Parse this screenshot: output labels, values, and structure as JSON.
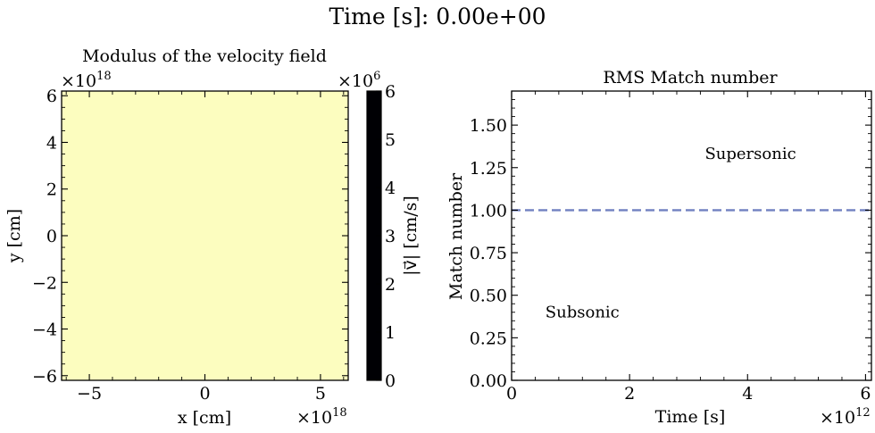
{
  "suptitle": "Time [s]: 0.00e+00",
  "chart_data": [
    {
      "type": "heatmap",
      "title": "Modulus of the velocity field",
      "xlabel": "x [cm]",
      "ylabel": "y [cm]",
      "x_scale_label": "×10",
      "x_scale_exp": "18",
      "y_scale_label": "×10",
      "y_scale_exp": "18",
      "xlim": [
        -6.2,
        6.2
      ],
      "ylim": [
        -6.2,
        6.2
      ],
      "xticks": [
        -5,
        0,
        5
      ],
      "xtick_labels": [
        "−5",
        "0",
        "5"
      ],
      "yticks": [
        -6,
        -4,
        -2,
        0,
        2,
        4,
        6
      ],
      "ytick_labels": [
        "−6",
        "−4",
        "−2",
        "0",
        "2",
        "4",
        "6"
      ],
      "field_value": 0,
      "field_color": "#fcfdbf",
      "colorbar": {
        "label": "|v⃗| [cm/s]",
        "scale_label": "×10",
        "scale_exp": "6",
        "range": [
          0,
          6
        ],
        "ticks": [
          0,
          1,
          2,
          3,
          4,
          5,
          6
        ],
        "tick_labels": [
          "0",
          "1",
          "2",
          "3",
          "4",
          "5",
          "6"
        ],
        "colormap": "magma",
        "stops": [
          "#000004",
          "#3b0f70",
          "#8c2981",
          "#de4968",
          "#fe9f6d",
          "#fcfdbf"
        ]
      }
    },
    {
      "type": "line",
      "title": "RMS Match number",
      "xlabel": "Time [s]",
      "ylabel": "Match number",
      "x_scale_label": "×10",
      "x_scale_exp": "12",
      "xlim": [
        0,
        6.1
      ],
      "ylim": [
        0,
        1.7
      ],
      "xticks": [
        0,
        2,
        4,
        6
      ],
      "xtick_labels": [
        "0",
        "2",
        "4",
        "6"
      ],
      "yticks": [
        0,
        0.25,
        0.5,
        0.75,
        1.0,
        1.25,
        1.5
      ],
      "ytick_labels": [
        "0.00",
        "0.25",
        "0.50",
        "0.75",
        "1.00",
        "1.25",
        "1.50"
      ],
      "series": [],
      "reference_line": {
        "y": 1.0,
        "style": "dashed",
        "color": "#7080c0"
      },
      "annotations": [
        {
          "text": "Supersonic",
          "x": 4.05,
          "y": 1.3
        },
        {
          "text": "Subsonic",
          "x": 1.2,
          "y": 0.37
        }
      ]
    }
  ]
}
